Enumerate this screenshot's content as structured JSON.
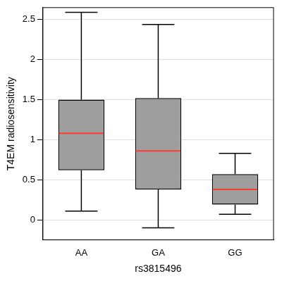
{
  "chart_data": {
    "type": "box",
    "x_label": "rs3815496",
    "y_label": "T4EM radiosensitivity",
    "categories": [
      "AA",
      "GA",
      "GG"
    ],
    "min": [
      0.11,
      -0.1,
      0.07
    ],
    "q1": [
      0.62,
      0.38,
      0.19
    ],
    "median": [
      1.08,
      0.86,
      0.38
    ],
    "q3": [
      1.5,
      1.52,
      0.57
    ],
    "max": [
      2.59,
      2.44,
      0.83
    ],
    "color": "#9e9e9e",
    "ylim": [
      -0.25,
      2.65
    ],
    "yticks": [
      0,
      0.5,
      1,
      1.5,
      2,
      2.5
    ],
    "grid": true
  }
}
